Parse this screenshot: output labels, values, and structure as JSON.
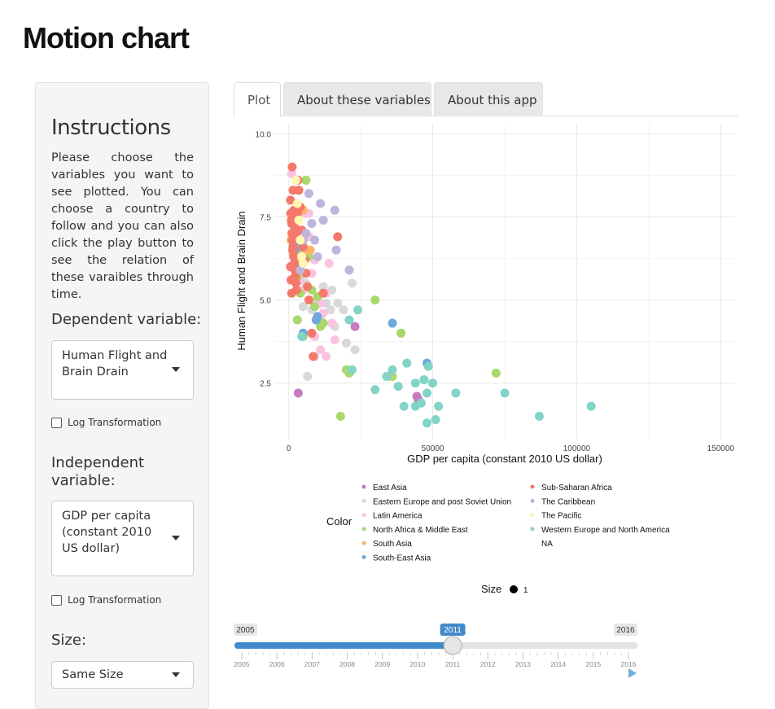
{
  "app": {
    "title": "Motion chart"
  },
  "sidebar": {
    "heading": "Instructions",
    "instructions": "Please choose the variables you want to see plotted. You can choose a country to follow and you can also click the play button to see the relation of these varaibles through time.",
    "dependent": {
      "label": "Dependent variable:",
      "value": "Human Flight and Brain Drain",
      "log_label": "Log Transformation",
      "log_checked": false
    },
    "independent": {
      "label": "Independent variable:",
      "value": "GDP per capita (constant 2010 US dollar)",
      "log_label": "Log Transformation",
      "log_checked": false
    },
    "size": {
      "label": "Size:",
      "value": "Same Size"
    }
  },
  "tabs": [
    {
      "label": "Plot",
      "active": true
    },
    {
      "label": "About these variables",
      "active": false
    },
    {
      "label": "About this app",
      "active": false
    }
  ],
  "legend": {
    "color_title": "Color",
    "size_title": "Size",
    "size_value": "1",
    "entries": [
      {
        "label": "East Asia",
        "color": "#c77cbf"
      },
      {
        "label": "Eastern Europe and post Soviet Union",
        "color": "#d9d9d9"
      },
      {
        "label": "Latin America",
        "color": "#fbc2e0"
      },
      {
        "label": "North Africa & Middle East",
        "color": "#a8d86e"
      },
      {
        "label": "South Asia",
        "color": "#fdb36b"
      },
      {
        "label": "South-East Asia",
        "color": "#6fa8dc"
      },
      {
        "label": "Sub-Saharan Africa",
        "color": "#f4796a"
      },
      {
        "label": "The Caribbean",
        "color": "#bcb5dc"
      },
      {
        "label": "The Pacific",
        "color": "#fff7b3"
      },
      {
        "label": "Western Europe and North America",
        "color": "#82d4c7"
      },
      {
        "label": "NA",
        "color": "none"
      }
    ]
  },
  "slider": {
    "min_label": "2005",
    "max_label": "2016",
    "value_label": "2011",
    "min": 2005,
    "max": 2016,
    "value": 2011,
    "ticks": [
      "2005",
      "2006",
      "2007",
      "2008",
      "2009",
      "2010",
      "2011",
      "2012",
      "2013",
      "2014",
      "2015",
      "2016"
    ],
    "accent_color": "#428bca"
  },
  "chart_data": {
    "type": "scatter",
    "xlabel": "GDP per capita (constant 2010 US dollar)",
    "ylabel": "Human Flight and Brain Drain",
    "xlim": [
      -5000,
      155000
    ],
    "ylim": [
      0.8,
      10.3
    ],
    "x_ticks": [
      0,
      50000,
      100000,
      150000
    ],
    "x_tick_labels": [
      "0",
      "50000",
      "100000",
      "150000"
    ],
    "y_ticks": [
      2.5,
      5.0,
      7.5,
      10.0
    ],
    "y_tick_labels": [
      "2.5",
      "5.0",
      "7.5",
      "10.0"
    ],
    "grid": true,
    "series": [
      {
        "name": "East Asia",
        "color": "#c77cbf",
        "points": [
          [
            3300,
            2.2
          ],
          [
            23000,
            4.2
          ],
          [
            44500,
            2.1
          ],
          [
            45000,
            2.0
          ]
        ]
      },
      {
        "name": "Eastern Europe and post Soviet Union",
        "color": "#d9d9d9",
        "points": [
          [
            5000,
            4.8
          ],
          [
            7000,
            5.0
          ],
          [
            8000,
            4.7
          ],
          [
            10000,
            4.5
          ],
          [
            11000,
            4.4
          ],
          [
            12000,
            5.2
          ],
          [
            13000,
            4.9
          ],
          [
            14500,
            4.7
          ],
          [
            15000,
            5.3
          ],
          [
            16000,
            4.2
          ],
          [
            17000,
            4.9
          ],
          [
            19000,
            4.7
          ],
          [
            20000,
            3.7
          ],
          [
            22000,
            5.5
          ],
          [
            23000,
            3.5
          ],
          [
            6500,
            2.7
          ],
          [
            9000,
            3.3
          ],
          [
            4000,
            5.6
          ],
          [
            3000,
            5.9
          ],
          [
            2500,
            6.0
          ],
          [
            6000,
            5.5
          ],
          [
            12000,
            5.4
          ]
        ]
      },
      {
        "name": "Latin America",
        "color": "#fbc2e0",
        "points": [
          [
            1000,
            8.8
          ],
          [
            2000,
            5.7
          ],
          [
            4000,
            5.6
          ],
          [
            5000,
            5.3
          ],
          [
            6000,
            7.6
          ],
          [
            7000,
            7.6
          ],
          [
            8000,
            5.8
          ],
          [
            9000,
            6.2
          ],
          [
            10000,
            5.0
          ],
          [
            11000,
            4.9
          ],
          [
            12000,
            4.6
          ],
          [
            13000,
            5.2
          ],
          [
            14000,
            6.1
          ],
          [
            15000,
            4.3
          ],
          [
            16000,
            3.8
          ],
          [
            9000,
            3.9
          ],
          [
            11000,
            3.5
          ],
          [
            13000,
            3.3
          ],
          [
            7000,
            6.9
          ],
          [
            5500,
            6.4
          ]
        ]
      },
      {
        "name": "North Africa & Middle East",
        "color": "#a8d86e",
        "points": [
          [
            3000,
            5.7
          ],
          [
            4000,
            5.2
          ],
          [
            5000,
            6.6
          ],
          [
            6000,
            8.6
          ],
          [
            7000,
            6.3
          ],
          [
            8000,
            5.3
          ],
          [
            9000,
            4.8
          ],
          [
            10000,
            5.1
          ],
          [
            11000,
            4.2
          ],
          [
            12000,
            4.3
          ],
          [
            3000,
            4.4
          ],
          [
            5000,
            3.9
          ],
          [
            18000,
            1.5
          ],
          [
            20000,
            2.9
          ],
          [
            21000,
            2.8
          ],
          [
            30000,
            5.0
          ],
          [
            35000,
            2.7
          ],
          [
            36000,
            2.7
          ],
          [
            39000,
            4.0
          ],
          [
            72000,
            2.8
          ],
          [
            2500,
            6.2
          ],
          [
            3500,
            6.5
          ]
        ]
      },
      {
        "name": "South Asia",
        "color": "#fdb36b",
        "points": [
          [
            800,
            6.8
          ],
          [
            1200,
            7.0
          ],
          [
            1500,
            6.4
          ],
          [
            2000,
            6.1
          ],
          [
            3000,
            7.5
          ],
          [
            4000,
            6.3
          ],
          [
            6000,
            6.5
          ],
          [
            7500,
            6.5
          ],
          [
            5000,
            7.7
          ]
        ]
      },
      {
        "name": "South-East Asia",
        "color": "#6fa8dc",
        "points": [
          [
            2000,
            6.5
          ],
          [
            3000,
            6.6
          ],
          [
            4000,
            6.0
          ],
          [
            5000,
            4.0
          ],
          [
            10000,
            4.5
          ],
          [
            36000,
            4.3
          ],
          [
            48000,
            3.1
          ],
          [
            9500,
            4.4
          ]
        ]
      },
      {
        "name": "Sub-Saharan Africa",
        "color": "#f4796a",
        "points": [
          [
            1200,
            9.0
          ],
          [
            1500,
            8.3
          ],
          [
            1800,
            7.7
          ],
          [
            2200,
            7.6
          ],
          [
            2500,
            7.0
          ],
          [
            600,
            8.0
          ],
          [
            700,
            7.6
          ],
          [
            900,
            7.4
          ],
          [
            1000,
            7.3
          ],
          [
            1100,
            7.0
          ],
          [
            1300,
            6.8
          ],
          [
            1500,
            6.6
          ],
          [
            1700,
            6.3
          ],
          [
            1900,
            6.1
          ],
          [
            2100,
            5.9
          ],
          [
            2300,
            5.7
          ],
          [
            2500,
            5.5
          ],
          [
            2700,
            5.3
          ],
          [
            800,
            5.6
          ],
          [
            1000,
            5.2
          ],
          [
            1200,
            6.0
          ],
          [
            1400,
            6.5
          ],
          [
            3500,
            8.3
          ],
          [
            4000,
            7.8
          ],
          [
            4500,
            7.1
          ],
          [
            5000,
            6.6
          ],
          [
            5500,
            6.2
          ],
          [
            6000,
            5.8
          ],
          [
            6500,
            5.4
          ],
          [
            7000,
            5.0
          ],
          [
            8000,
            4.0
          ],
          [
            8500,
            3.3
          ],
          [
            12000,
            5.2
          ],
          [
            17000,
            6.9
          ],
          [
            3000,
            7.6
          ],
          [
            3200,
            8.6
          ],
          [
            2000,
            7.2
          ],
          [
            600,
            6.0
          ]
        ]
      },
      {
        "name": "The Caribbean",
        "color": "#bcb5dc",
        "points": [
          [
            5000,
            6.8
          ],
          [
            6000,
            7.0
          ],
          [
            7000,
            8.2
          ],
          [
            8000,
            7.3
          ],
          [
            9000,
            6.8
          ],
          [
            10000,
            6.3
          ],
          [
            11000,
            7.9
          ],
          [
            12000,
            7.4
          ],
          [
            16000,
            7.7
          ],
          [
            16500,
            6.5
          ],
          [
            21000,
            5.9
          ],
          [
            4000,
            5.9
          ]
        ]
      },
      {
        "name": "The Pacific",
        "color": "#fff7b3",
        "points": [
          [
            2500,
            8.6
          ],
          [
            3000,
            7.9
          ],
          [
            3500,
            7.4
          ],
          [
            4000,
            6.8
          ],
          [
            4500,
            6.3
          ],
          [
            5000,
            6.1
          ]
        ]
      },
      {
        "name": "Western Europe and North America",
        "color": "#82d4c7",
        "points": [
          [
            4500,
            3.9
          ],
          [
            21000,
            4.4
          ],
          [
            22000,
            2.9
          ],
          [
            24000,
            4.7
          ],
          [
            30000,
            2.3
          ],
          [
            34000,
            2.7
          ],
          [
            36000,
            2.9
          ],
          [
            38000,
            2.4
          ],
          [
            40000,
            1.8
          ],
          [
            41000,
            3.1
          ],
          [
            44000,
            1.8
          ],
          [
            44000,
            2.5
          ],
          [
            46000,
            1.9
          ],
          [
            47000,
            2.6
          ],
          [
            48000,
            1.3
          ],
          [
            48000,
            2.2
          ],
          [
            48500,
            3.0
          ],
          [
            50000,
            2.5
          ],
          [
            51000,
            1.4
          ],
          [
            52000,
            1.8
          ],
          [
            58000,
            2.2
          ],
          [
            75000,
            2.2
          ],
          [
            87000,
            1.5
          ],
          [
            105000,
            1.8
          ]
        ]
      }
    ]
  }
}
